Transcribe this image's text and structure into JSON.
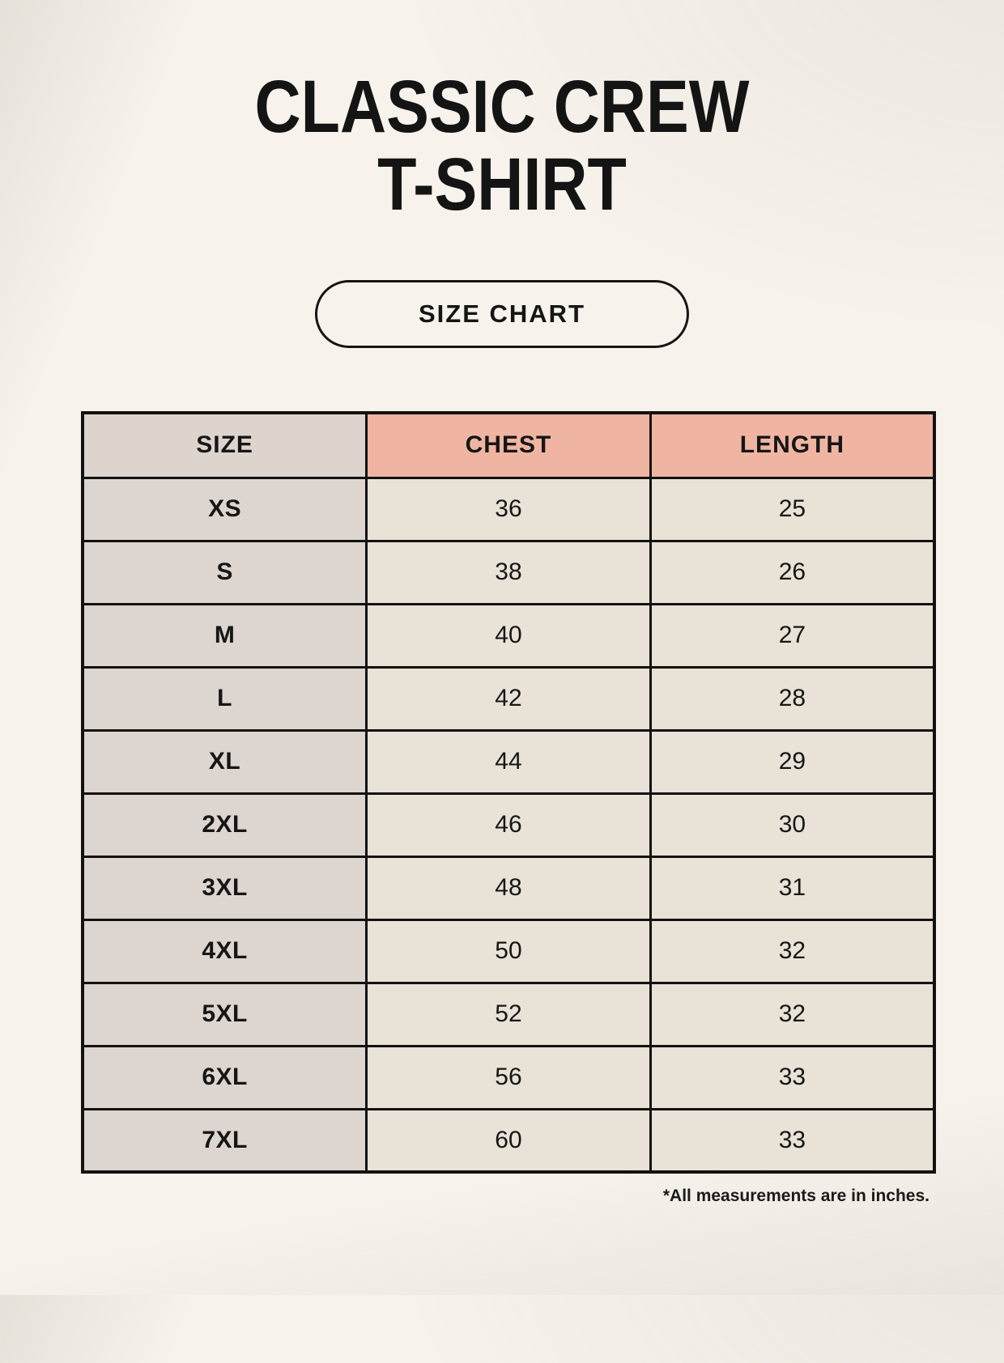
{
  "page": {
    "title_line1": "CLASSIC CREW",
    "title_line2": "T-SHIRT",
    "size_chart_label": "SIZE CHART",
    "footnote": "*All measurements are in inches."
  },
  "table": {
    "columns": [
      "SIZE",
      "CHEST",
      "LENGTH"
    ],
    "rows": [
      {
        "size": "XS",
        "chest": "36",
        "length": "25"
      },
      {
        "size": "S",
        "chest": "38",
        "length": "26"
      },
      {
        "size": "M",
        "chest": "40",
        "length": "27"
      },
      {
        "size": "L",
        "chest": "42",
        "length": "28"
      },
      {
        "size": "XL",
        "chest": "44",
        "length": "29"
      },
      {
        "size": "2XL",
        "chest": "46",
        "length": "30"
      },
      {
        "size": "3XL",
        "chest": "48",
        "length": "31"
      },
      {
        "size": "4XL",
        "chest": "50",
        "length": "32"
      },
      {
        "size": "5XL",
        "chest": "52",
        "length": "32"
      },
      {
        "size": "6XL",
        "chest": "56",
        "length": "33"
      },
      {
        "size": "7XL",
        "chest": "60",
        "length": "33"
      }
    ]
  },
  "colors": {
    "background": "#f7f3ec",
    "accent_pink": "#f0b5a2",
    "size_column_taupe": "#ddd5cf",
    "cell_beige": "#e9e2d6",
    "border": "#121212",
    "text": "#161616"
  }
}
